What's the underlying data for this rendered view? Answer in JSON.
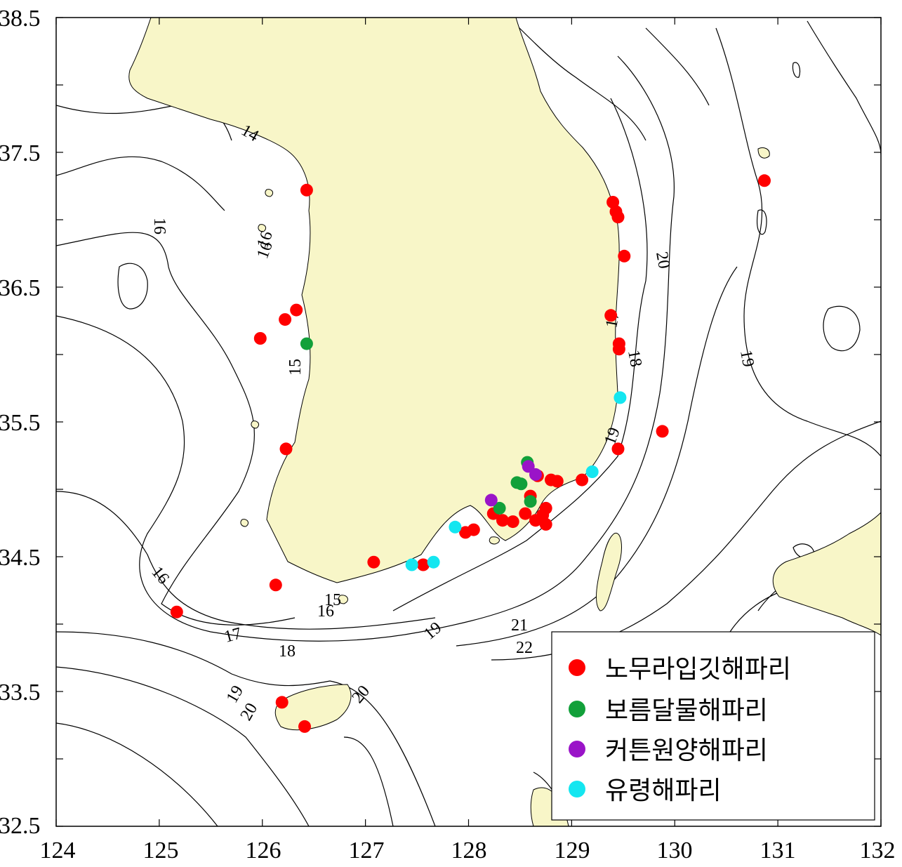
{
  "map": {
    "lon_range": [
      124,
      132
    ],
    "lat_range": [
      32.5,
      38.5
    ],
    "x_ticks": [
      "124",
      "125",
      "126",
      "127",
      "128",
      "129",
      "130",
      "131",
      "132"
    ],
    "y_ticks": [
      "38.5",
      "37.5",
      "36.5",
      "35.5",
      "34.5",
      "33.5",
      "32.5"
    ],
    "colors": {
      "land": "#f8f6c8",
      "contour": "#000000",
      "nomura": "#ff0000",
      "moon": "#12a03a",
      "cotton": "#9a14c8",
      "ghost": "#14e6f0"
    },
    "contour_labels": [
      "14",
      "16",
      "16",
      "15",
      "16",
      "15",
      "16",
      "17",
      "18",
      "19",
      "20",
      "21",
      "22",
      "19",
      "20",
      "17",
      "18",
      "19",
      "20",
      "19",
      "16"
    ],
    "legend": [
      {
        "label": "노무라입깃해파리",
        "color": "#ff0000"
      },
      {
        "label": "보름달물해파리",
        "color": "#12a03a"
      },
      {
        "label": "커튼원양해파리",
        "color": "#9a14c8"
      },
      {
        "label": "유령해파리",
        "color": "#14e6f0"
      }
    ]
  },
  "chart_data": {
    "type": "scatter",
    "xlim": [
      124,
      132
    ],
    "ylim": [
      32.5,
      38.5
    ],
    "series": [
      {
        "name": "노무라입깃해파리",
        "color": "#ff0000",
        "points": [
          [
            126.43,
            37.22
          ],
          [
            125.98,
            36.12
          ],
          [
            126.22,
            36.26
          ],
          [
            126.33,
            36.33
          ],
          [
            126.23,
            35.3
          ],
          [
            126.13,
            34.29
          ],
          [
            125.17,
            34.09
          ],
          [
            127.08,
            34.46
          ],
          [
            127.56,
            34.44
          ],
          [
            127.97,
            34.68
          ],
          [
            128.05,
            34.7
          ],
          [
            128.24,
            34.82
          ],
          [
            128.33,
            34.77
          ],
          [
            128.43,
            34.76
          ],
          [
            128.55,
            34.82
          ],
          [
            128.6,
            34.95
          ],
          [
            128.65,
            34.77
          ],
          [
            128.72,
            34.81
          ],
          [
            128.75,
            34.74
          ],
          [
            128.75,
            34.86
          ],
          [
            128.67,
            35.1
          ],
          [
            128.8,
            35.07
          ],
          [
            128.86,
            35.06
          ],
          [
            129.1,
            35.07
          ],
          [
            129.45,
            35.3
          ],
          [
            129.38,
            36.29
          ],
          [
            129.46,
            36.08
          ],
          [
            129.46,
            36.04
          ],
          [
            129.4,
            37.13
          ],
          [
            129.43,
            37.06
          ],
          [
            129.45,
            37.02
          ],
          [
            129.51,
            36.73
          ],
          [
            129.88,
            35.43
          ],
          [
            130.87,
            37.29
          ],
          [
            126.19,
            33.42
          ],
          [
            126.41,
            33.24
          ]
        ]
      },
      {
        "name": "보름달물해파리",
        "color": "#12a03a",
        "points": [
          [
            126.43,
            36.08
          ],
          [
            128.57,
            35.2
          ],
          [
            128.47,
            35.05
          ],
          [
            128.51,
            35.04
          ],
          [
            128.6,
            34.91
          ],
          [
            128.3,
            34.86
          ]
        ]
      },
      {
        "name": "커튼원양해파리",
        "color": "#9a14c8",
        "points": [
          [
            128.58,
            35.17
          ],
          [
            128.65,
            35.11
          ],
          [
            128.22,
            34.92
          ]
        ]
      },
      {
        "name": "유령해파리",
        "color": "#14e6f0",
        "points": [
          [
            127.87,
            34.72
          ],
          [
            127.45,
            34.44
          ],
          [
            127.66,
            34.46
          ],
          [
            129.2,
            35.13
          ],
          [
            129.47,
            35.68
          ]
        ]
      }
    ]
  }
}
